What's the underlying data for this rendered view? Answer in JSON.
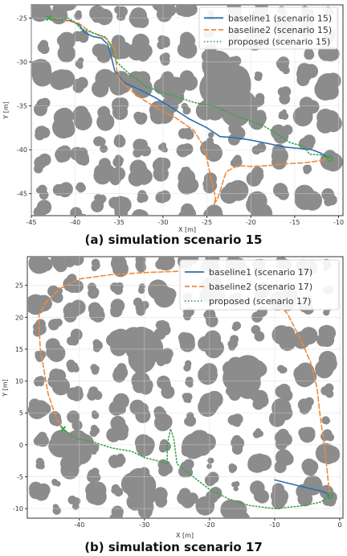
{
  "colors": {
    "baseline1": "#2e6fad",
    "baseline2": "#ef8a3a",
    "proposed": "#3aa34a",
    "obstacle": "#8c8c8c",
    "grid": "#d9d9d9"
  },
  "chart_data": [
    {
      "type": "line",
      "caption": "(a) simulation scenario 15",
      "xlabel": "X [m]",
      "ylabel": "Y [m]",
      "xlim": [
        -45,
        -9.5
      ],
      "ylim": [
        -47.5,
        -23.5
      ],
      "xticks": [
        -45,
        -40,
        -35,
        -30,
        -25,
        -20,
        -15,
        -10
      ],
      "yticks": [
        -25,
        -30,
        -35,
        -40,
        -45
      ],
      "grid": true,
      "legend_position": "top-right",
      "start": {
        "x": -43,
        "y": -25,
        "marker": "x"
      },
      "goal": {
        "x": -11,
        "y": -41,
        "marker": "circle"
      },
      "series": [
        {
          "name": "baseline1 (scenario 15)",
          "style": "solid",
          "color_key": "baseline1",
          "x": [
            -43,
            -42,
            -40.5,
            -39.5,
            -39,
            -38,
            -37,
            -36.3,
            -36,
            -35.5,
            -34.5,
            -33,
            -31,
            -29,
            -27,
            -25,
            -23.5,
            -22,
            -20,
            -18,
            -16,
            -14,
            -13,
            -12,
            -11
          ],
          "y": [
            -25,
            -25.2,
            -25.3,
            -25.8,
            -26.6,
            -27.1,
            -27.3,
            -28,
            -29,
            -31,
            -32.3,
            -33,
            -34,
            -35.2,
            -36.5,
            -37.5,
            -38.5,
            -38.6,
            -38.9,
            -39.3,
            -39.7,
            -39.9,
            -40,
            -40.4,
            -41
          ]
        },
        {
          "name": "baseline2 (scenario 15)",
          "style": "dashed",
          "color_key": "baseline2",
          "x": [
            -43,
            -41,
            -39.6,
            -38.8,
            -38,
            -36.5,
            -35.5,
            -35.2,
            -34.5,
            -33,
            -31,
            -28.5,
            -26.5,
            -25.5,
            -25,
            -24.5,
            -24,
            -24.2,
            -23.8,
            -22.8,
            -21.5,
            -20,
            -18,
            -16,
            -14,
            -12.5,
            -11
          ],
          "y": [
            -25,
            -25.3,
            -25.6,
            -26.2,
            -26.7,
            -27.3,
            -28.5,
            -31.5,
            -32.5,
            -33.8,
            -35.1,
            -36.4,
            -37.8,
            -39.4,
            -41,
            -43.5,
            -45.5,
            -46.2,
            -45.6,
            -42.5,
            -41.8,
            -41.9,
            -41.8,
            -41.6,
            -41.5,
            -41.3,
            -41
          ]
        },
        {
          "name": "proposed (scenario 15)",
          "style": "dotted",
          "color_key": "proposed",
          "x": [
            -43,
            -42,
            -40.8,
            -40,
            -39.4,
            -38.5,
            -36.5,
            -35.8,
            -35.3,
            -34,
            -32,
            -29,
            -26.5,
            -24,
            -21.5,
            -18.5,
            -17,
            -15.5,
            -14,
            -13.3,
            -12,
            -11
          ],
          "y": [
            -25,
            -25.2,
            -25,
            -25.5,
            -26.2,
            -26.5,
            -27.2,
            -28.5,
            -30,
            -31.2,
            -32.8,
            -33.8,
            -34.6,
            -35.1,
            -36.2,
            -37.3,
            -38.2,
            -39.2,
            -39.6,
            -40.5,
            -40.6,
            -41
          ]
        }
      ]
    },
    {
      "type": "line",
      "caption": "(b) simulation scenario 17",
      "xlabel": "X [m]",
      "ylabel": "Y [m]",
      "xlim": [
        -48,
        0.5
      ],
      "ylim": [
        -11.5,
        29.5
      ],
      "xticks": [
        -40,
        -30,
        -20,
        -10,
        0
      ],
      "yticks": [
        25,
        20,
        15,
        10,
        5,
        0,
        -5,
        -10
      ],
      "grid": true,
      "legend_position": "top-right",
      "start": {
        "x": -42.5,
        "y": 2.5,
        "marker": "x"
      },
      "goal": {
        "x": -1.5,
        "y": -8,
        "marker": "circle"
      },
      "series": [
        {
          "name": "baseline1 (scenario 17)",
          "style": "solid",
          "color_key": "baseline1",
          "x": [
            -10,
            -8,
            -6,
            -4,
            -3,
            -2,
            -1.5
          ],
          "y": [
            -5.5,
            -6,
            -6.5,
            -7,
            -7.2,
            -7.6,
            -8
          ]
        },
        {
          "name": "baseline2 (scenario 17)",
          "style": "dashed",
          "color_key": "baseline2",
          "x": [
            -42.5,
            -43.5,
            -44.8,
            -46,
            -46.2,
            -46.2,
            -45,
            -43,
            -40,
            -35,
            -30,
            -25,
            -20,
            -15,
            -11,
            -8,
            -6,
            -4.5,
            -3.5,
            -3,
            -2.3,
            -1.8,
            -1.5
          ],
          "y": [
            2.5,
            4,
            8,
            15,
            18.5,
            20.5,
            22.5,
            24.5,
            26,
            26.7,
            27,
            27.2,
            27,
            26,
            24,
            20.5,
            16.5,
            13,
            9,
            4.5,
            -0.5,
            -5.5,
            -8
          ]
        },
        {
          "name": "proposed (scenario 17)",
          "style": "dotted",
          "color_key": "proposed",
          "x": [
            -42.5,
            -40.5,
            -38,
            -35,
            -32,
            -30,
            -28,
            -26.5,
            -26.5,
            -26,
            -25.5,
            -25,
            -22.5,
            -20,
            -17,
            -14,
            -10,
            -6,
            -3,
            -1.5
          ],
          "y": [
            2.5,
            1,
            0.5,
            -0.5,
            -1,
            -2,
            -2.5,
            -3,
            0,
            2.5,
            1,
            -3,
            -5,
            -7,
            -8.5,
            -9.5,
            -10,
            -9.6,
            -9,
            -8
          ]
        }
      ]
    }
  ]
}
